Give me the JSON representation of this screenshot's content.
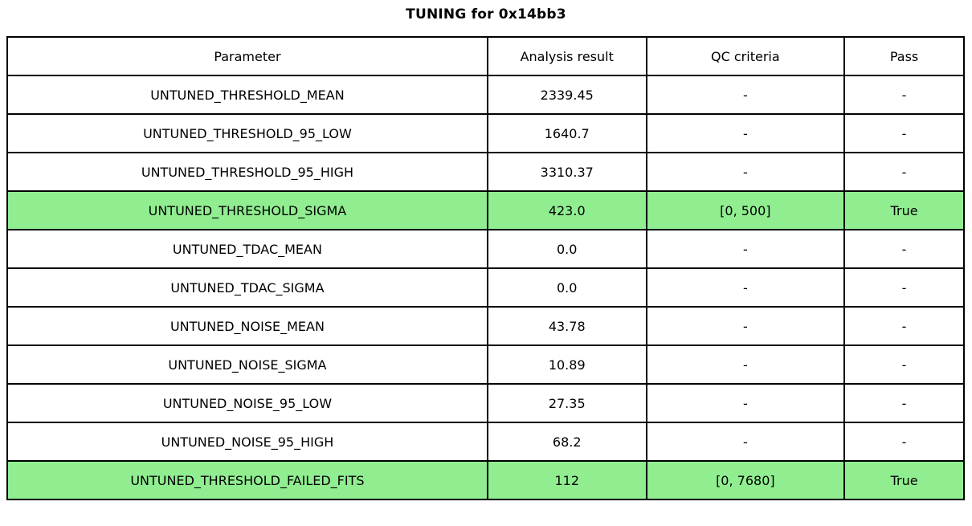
{
  "title": "TUNING for 0x14bb3",
  "colors": {
    "highlight_green": "#90EE90",
    "border": "#000000",
    "background": "#FFFFFF",
    "text": "#000000"
  },
  "chart_data": {
    "type": "table",
    "title": "TUNING for 0x14bb3",
    "columns": [
      "Parameter",
      "Analysis result",
      "QC criteria",
      "Pass"
    ],
    "highlight_color": "#90EE90",
    "rows": [
      {
        "parameter": "UNTUNED_THRESHOLD_MEAN",
        "analysis_result": "2339.45",
        "qc_criteria": "-",
        "pass": "-",
        "highlighted": false
      },
      {
        "parameter": "UNTUNED_THRESHOLD_95_LOW",
        "analysis_result": "1640.7",
        "qc_criteria": "-",
        "pass": "-",
        "highlighted": false
      },
      {
        "parameter": "UNTUNED_THRESHOLD_95_HIGH",
        "analysis_result": "3310.37",
        "qc_criteria": "-",
        "pass": "-",
        "highlighted": false
      },
      {
        "parameter": "UNTUNED_THRESHOLD_SIGMA",
        "analysis_result": "423.0",
        "qc_criteria": "[0, 500]",
        "pass": "True",
        "highlighted": true
      },
      {
        "parameter": "UNTUNED_TDAC_MEAN",
        "analysis_result": "0.0",
        "qc_criteria": "-",
        "pass": "-",
        "highlighted": false
      },
      {
        "parameter": "UNTUNED_TDAC_SIGMA",
        "analysis_result": "0.0",
        "qc_criteria": "-",
        "pass": "-",
        "highlighted": false
      },
      {
        "parameter": "UNTUNED_NOISE_MEAN",
        "analysis_result": "43.78",
        "qc_criteria": "-",
        "pass": "-",
        "highlighted": false
      },
      {
        "parameter": "UNTUNED_NOISE_SIGMA",
        "analysis_result": "10.89",
        "qc_criteria": "-",
        "pass": "-",
        "highlighted": false
      },
      {
        "parameter": "UNTUNED_NOISE_95_LOW",
        "analysis_result": "27.35",
        "qc_criteria": "-",
        "pass": "-",
        "highlighted": false
      },
      {
        "parameter": "UNTUNED_NOISE_95_HIGH",
        "analysis_result": "68.2",
        "qc_criteria": "-",
        "pass": "-",
        "highlighted": false
      },
      {
        "parameter": "UNTUNED_THRESHOLD_FAILED_FITS",
        "analysis_result": "112",
        "qc_criteria": "[0, 7680]",
        "pass": "True",
        "highlighted": true
      }
    ]
  }
}
